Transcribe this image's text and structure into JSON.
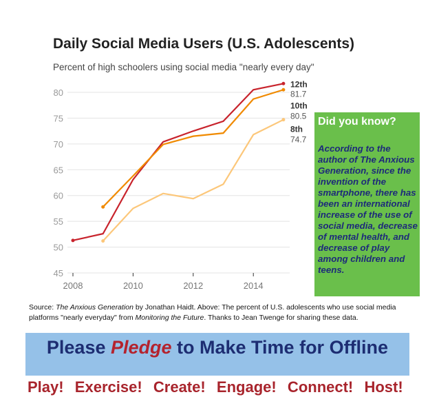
{
  "chart_data": {
    "type": "line",
    "title": "Daily Social Media Users (U.S. Adolescents)",
    "subtitle": "Percent of high schoolers using social media \"nearly every day\"",
    "xlabel": "",
    "ylabel": "",
    "ylim": [
      45,
      82
    ],
    "yticks": [
      45,
      50,
      55,
      60,
      65,
      70,
      75,
      80
    ],
    "xticks": [
      2008,
      2010,
      2012,
      2014
    ],
    "grid": true,
    "series": [
      {
        "name": "12th",
        "end_label": "81.7",
        "color": "#c8232c",
        "x": [
          2008,
          2009,
          2010,
          2011,
          2012,
          2013,
          2014,
          2015
        ],
        "values": [
          51.3,
          52.6,
          63.1,
          70.4,
          72.5,
          74.4,
          80.5,
          81.7
        ]
      },
      {
        "name": "10th",
        "end_label": "80.5",
        "color": "#f08a00",
        "x": [
          2009,
          2010,
          2011,
          2012,
          2013,
          2014,
          2015
        ],
        "values": [
          57.8,
          63.8,
          69.9,
          71.5,
          72.1,
          78.7,
          80.5
        ]
      },
      {
        "name": "8th",
        "end_label": "74.7",
        "color": "#fcc77a",
        "x": [
          2009,
          2010,
          2011,
          2012,
          2013,
          2014,
          2015
        ],
        "values": [
          51.2,
          57.5,
          60.4,
          59.4,
          62.2,
          71.8,
          74.7
        ]
      }
    ]
  },
  "callout": {
    "heading": "Did you know?",
    "body": "According to the author of The Anxious Generation, since the invention of the smartphone, there has been an international increase of the use of social  media, decrease of mental health, and decrease of play among children and teens."
  },
  "source": {
    "p1": "Source:  ",
    "book": "The Anxious Generation",
    "p2": " by Jonathan Haidt.  Above:  The percent of U.S. adolescents who use social media platforms \"nearly everyday\" from ",
    "mtf": "Monitoring the Future",
    "p3": ".  Thanks to Jean Twenge for sharing these data."
  },
  "banner": {
    "pre": "Please ",
    "pledge": "Pledge",
    "post": " to Make Time for Offline"
  },
  "actions": "Play!  Exercise!  Create!  Engage!  Connect!  Host!"
}
